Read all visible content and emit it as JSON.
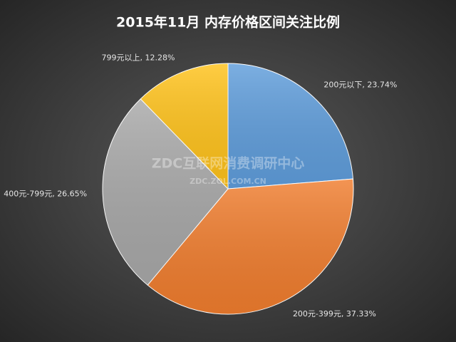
{
  "chart_data": {
    "type": "pie",
    "title": "2015年11月  内存价格区间关注比例",
    "values": [
      23.74,
      37.33,
      26.65,
      12.28
    ],
    "value_labels": [
      "200元以下, 23.74%",
      "200元-399元, 37.33%",
      "400元-799元, 26.65%",
      "799元以上, 12.28%"
    ],
    "colors": [
      "#5f9ddb",
      "#f07d2e",
      "#a8a8a8",
      "#ffc21a"
    ],
    "watermark": "ZDC互联网消费调研中心",
    "watermark_url": "ZDC.ZOL.COM.CN"
  }
}
